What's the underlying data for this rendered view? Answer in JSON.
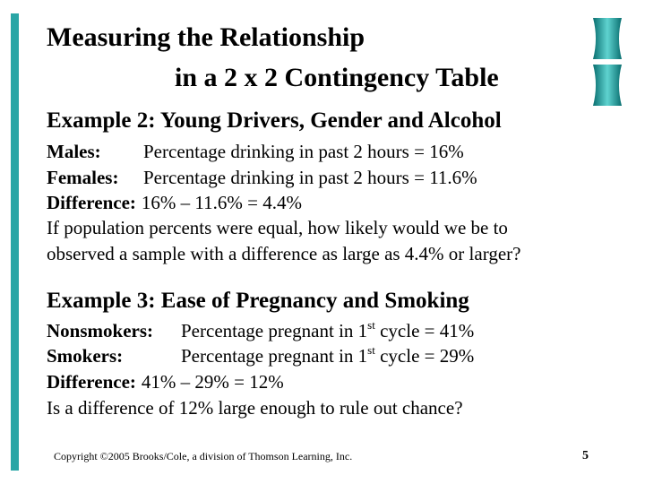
{
  "header": {
    "title_lines": [
      "Measuring the Relationship",
      "in a 2 x 2 Contingency Table"
    ]
  },
  "sections": [
    {
      "heading": "Example 2: Young Drivers, Gender and Alcohol",
      "lines": [
        {
          "label": "Males:",
          "parts": [
            "Percentage drinking in past 2 hours = 16%"
          ]
        },
        {
          "label": "Females:",
          "parts": [
            "Percentage drinking in past 2 hours = 11.6%"
          ]
        },
        {
          "label": "Difference:",
          "parts": [
            "16% – 11.6% = 4.4%"
          ]
        },
        {
          "parts": [
            "If population percents were equal, how likely would we be to"
          ]
        },
        {
          "parts": [
            "observed a sample with a difference as large as 4.4% or larger?"
          ]
        }
      ]
    },
    {
      "heading": "Example 3: Ease of Pregnancy and Smoking",
      "lines": [
        {
          "label": "Nonsmokers:",
          "parts": [
            "Percentage pregnant in 1",
            "st",
            " cycle = 41%"
          ]
        },
        {
          "label": "Smokers:",
          "parts": [
            "Percentage pregnant in 1",
            "st",
            " cycle = 29%"
          ]
        },
        {
          "label": "Difference:",
          "parts": [
            "41% – 29% = 12%"
          ]
        },
        {
          "parts": [
            "Is a difference of 12% large enough to rule out chance?"
          ]
        }
      ]
    }
  ],
  "footer": {
    "copyright": "Copyright ©2005 Brooks/Cole, a division of Thomson Learning, Inc.",
    "page_number": "5"
  }
}
